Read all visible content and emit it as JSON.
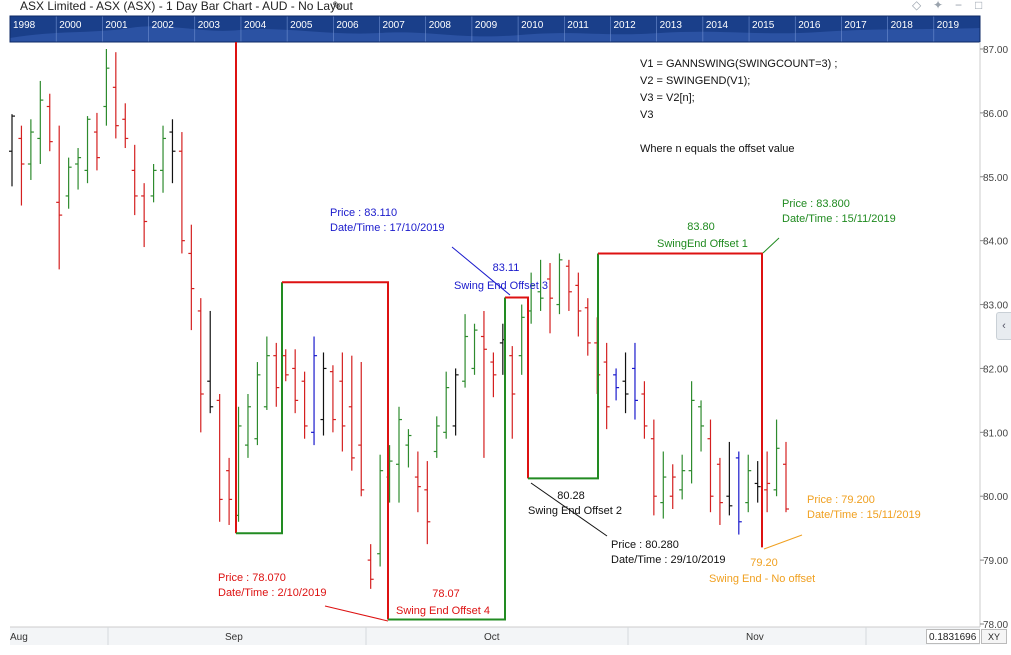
{
  "window": {
    "title": "ASX Limited - ASX (ASX) - 1 Day Bar Chart - AUD - No Layout",
    "edit_icon": "pencil-icon",
    "controls": [
      "diamond-icon",
      "pin-icon",
      "restore-icon",
      "close-icon"
    ]
  },
  "navigator": {
    "years": [
      "1998",
      "2000",
      "2001",
      "2002",
      "2003",
      "2004",
      "2005",
      "2006",
      "2007",
      "2008",
      "2009",
      "2010",
      "2011",
      "2012",
      "2013",
      "2014",
      "2015",
      "2016",
      "2017",
      "2018",
      "2019"
    ],
    "background_color": "#1a3f8a"
  },
  "chart_data": {
    "type": "bar",
    "subtype": "ohlc",
    "y_axis": {
      "ticks": [
        "78.00",
        "79.00",
        "80.00",
        "81.00",
        "82.00",
        "83.00",
        "84.00",
        "85.00",
        "86.00",
        "87.00"
      ],
      "min": 78.0,
      "max": 87.0,
      "side": "right"
    },
    "x_axis": {
      "labels": [
        "Aug",
        "Sep",
        "Oct",
        "Nov"
      ]
    },
    "colors": {
      "up": "#2e8b2e",
      "down": "#d42020",
      "neutral": "#111111",
      "highlight": "#1a1acc",
      "swing_line_red": "#dd1111",
      "swing_line_green": "#228b22"
    },
    "bars": [
      {
        "h": 85.98,
        "l": 84.85,
        "o": 85.4,
        "c": 85.95,
        "col": "k"
      },
      {
        "h": 85.8,
        "l": 84.55,
        "o": 85.6,
        "c": 85.2,
        "col": "r"
      },
      {
        "h": 85.9,
        "l": 84.95,
        "o": 85.2,
        "c": 85.7,
        "col": "g"
      },
      {
        "h": 86.5,
        "l": 85.2,
        "o": 85.6,
        "c": 86.2,
        "col": "g"
      },
      {
        "h": 86.3,
        "l": 85.4,
        "o": 86.1,
        "c": 85.55,
        "col": "r"
      },
      {
        "h": 85.8,
        "l": 83.55,
        "o": 84.6,
        "c": 84.4,
        "col": "r"
      },
      {
        "h": 85.3,
        "l": 84.5,
        "o": 84.7,
        "c": 85.15,
        "col": "g"
      },
      {
        "h": 85.45,
        "l": 84.8,
        "o": 85.2,
        "c": 85.3,
        "col": "g"
      },
      {
        "h": 85.95,
        "l": 84.9,
        "o": 85.1,
        "c": 85.9,
        "col": "g"
      },
      {
        "h": 86.0,
        "l": 85.1,
        "o": 85.7,
        "c": 85.3,
        "col": "r"
      },
      {
        "h": 87.0,
        "l": 85.8,
        "o": 86.1,
        "c": 86.7,
        "col": "g"
      },
      {
        "h": 86.95,
        "l": 85.6,
        "o": 86.4,
        "c": 85.8,
        "col": "r"
      },
      {
        "h": 86.15,
        "l": 85.45,
        "o": 85.9,
        "c": 85.6,
        "col": "r"
      },
      {
        "h": 85.5,
        "l": 84.4,
        "o": 85.1,
        "c": 84.7,
        "col": "r"
      },
      {
        "h": 84.9,
        "l": 83.9,
        "o": 84.7,
        "c": 84.3,
        "col": "r"
      },
      {
        "h": 85.2,
        "l": 84.6,
        "o": 84.7,
        "c": 85.1,
        "col": "g"
      },
      {
        "h": 85.8,
        "l": 84.75,
        "o": 85.1,
        "c": 85.6,
        "col": "g"
      },
      {
        "h": 85.9,
        "l": 84.9,
        "o": 85.7,
        "c": 85.4,
        "col": "k"
      },
      {
        "h": 85.7,
        "l": 83.8,
        "o": 85.4,
        "c": 84.0,
        "col": "r"
      },
      {
        "h": 84.25,
        "l": 82.6,
        "o": 83.8,
        "c": 83.25,
        "col": "r"
      },
      {
        "h": 83.1,
        "l": 81.0,
        "o": 82.9,
        "c": 81.6,
        "col": "r"
      },
      {
        "h": 82.9,
        "l": 81.3,
        "o": 81.8,
        "c": 81.4,
        "col": "k"
      },
      {
        "h": 81.6,
        "l": 79.6,
        "o": 81.5,
        "c": 79.95,
        "col": "r"
      },
      {
        "h": 80.6,
        "l": 79.55,
        "o": 80.4,
        "c": 79.95,
        "col": "r"
      },
      {
        "h": 81.4,
        "l": 79.6,
        "o": 79.7,
        "c": 81.1,
        "col": "g"
      },
      {
        "h": 81.6,
        "l": 80.6,
        "o": 80.8,
        "c": 81.4,
        "col": "g"
      },
      {
        "h": 82.1,
        "l": 80.8,
        "o": 80.9,
        "c": 81.9,
        "col": "g"
      },
      {
        "h": 82.5,
        "l": 81.35,
        "o": 81.4,
        "c": 82.2,
        "col": "g"
      },
      {
        "h": 82.4,
        "l": 81.4,
        "o": 82.2,
        "c": 81.7,
        "col": "r"
      },
      {
        "h": 82.3,
        "l": 81.8,
        "o": 82.2,
        "c": 81.9,
        "col": "r"
      },
      {
        "h": 82.3,
        "l": 81.3,
        "o": 82.0,
        "c": 81.5,
        "col": "r"
      },
      {
        "h": 81.95,
        "l": 80.9,
        "o": 81.8,
        "c": 81.1,
        "col": "r"
      },
      {
        "h": 82.5,
        "l": 80.8,
        "o": 81.0,
        "c": 82.2,
        "col": "b"
      },
      {
        "h": 82.25,
        "l": 80.95,
        "o": 81.2,
        "c": 82.0,
        "col": "k"
      },
      {
        "h": 82.05,
        "l": 81.0,
        "o": 81.95,
        "c": 81.2,
        "col": "r"
      },
      {
        "h": 82.25,
        "l": 80.7,
        "o": 81.8,
        "c": 81.1,
        "col": "r"
      },
      {
        "h": 82.2,
        "l": 80.4,
        "o": 81.4,
        "c": 80.6,
        "col": "r"
      },
      {
        "h": 82.1,
        "l": 80.0,
        "o": 80.8,
        "c": 80.1,
        "col": "r"
      },
      {
        "h": 79.25,
        "l": 78.55,
        "o": 79.0,
        "c": 78.7,
        "col": "r"
      },
      {
        "h": 80.65,
        "l": 78.9,
        "o": 79.1,
        "c": 80.4,
        "col": "g"
      },
      {
        "h": 80.8,
        "l": 79.9,
        "o": 80.3,
        "c": 80.55,
        "col": "g"
      },
      {
        "h": 81.4,
        "l": 79.9,
        "o": 80.5,
        "c": 81.2,
        "col": "g"
      },
      {
        "h": 81.05,
        "l": 80.45,
        "o": 80.8,
        "c": 80.95,
        "col": "g"
      },
      {
        "h": 80.7,
        "l": 79.75,
        "o": 80.3,
        "c": 80.15,
        "col": "r"
      },
      {
        "h": 80.55,
        "l": 79.25,
        "o": 80.1,
        "c": 79.6,
        "col": "r"
      },
      {
        "h": 81.25,
        "l": 80.6,
        "o": 80.7,
        "c": 81.1,
        "col": "g"
      },
      {
        "h": 81.95,
        "l": 80.9,
        "o": 81.0,
        "c": 81.7,
        "col": "g"
      },
      {
        "h": 82.0,
        "l": 80.95,
        "o": 81.1,
        "c": 81.9,
        "col": "k"
      },
      {
        "h": 82.85,
        "l": 81.7,
        "o": 81.8,
        "c": 82.5,
        "col": "g"
      },
      {
        "h": 82.7,
        "l": 81.9,
        "o": 82.0,
        "c": 82.6,
        "col": "g"
      },
      {
        "h": 82.9,
        "l": 80.6,
        "o": 82.5,
        "c": 82.3,
        "col": "r"
      },
      {
        "h": 82.25,
        "l": 81.55,
        "o": 82.1,
        "c": 81.9,
        "col": "r"
      },
      {
        "h": 82.7,
        "l": 81.9,
        "o": 82.4,
        "c": 82.45,
        "col": "k"
      },
      {
        "h": 82.35,
        "l": 80.9,
        "o": 82.2,
        "c": 81.6,
        "col": "r"
      },
      {
        "h": 83.0,
        "l": 81.9,
        "o": 82.2,
        "c": 82.8,
        "col": "g"
      },
      {
        "h": 83.5,
        "l": 82.7,
        "o": 82.9,
        "c": 83.3,
        "col": "g"
      },
      {
        "h": 83.7,
        "l": 82.9,
        "o": 83.2,
        "c": 83.1,
        "col": "g"
      },
      {
        "h": 83.65,
        "l": 82.55,
        "o": 83.4,
        "c": 83.1,
        "col": "r"
      },
      {
        "h": 83.8,
        "l": 82.85,
        "o": 83.0,
        "c": 83.7,
        "col": "g"
      },
      {
        "h": 83.7,
        "l": 82.9,
        "o": 83.6,
        "c": 83.2,
        "col": "r"
      },
      {
        "h": 83.5,
        "l": 82.5,
        "o": 83.3,
        "c": 82.9,
        "col": "r"
      },
      {
        "h": 83.1,
        "l": 82.2,
        "o": 82.95,
        "c": 82.4,
        "col": "r"
      },
      {
        "h": 82.8,
        "l": 81.6,
        "o": 82.4,
        "c": 81.9,
        "col": "r"
      },
      {
        "h": 82.4,
        "l": 81.05,
        "o": 82.1,
        "c": 81.4,
        "col": "r"
      },
      {
        "h": 82.0,
        "l": 81.5,
        "o": 81.9,
        "c": 81.7,
        "col": "b"
      },
      {
        "h": 82.25,
        "l": 81.3,
        "o": 81.8,
        "c": 81.6,
        "col": "k"
      },
      {
        "h": 82.4,
        "l": 81.2,
        "o": 82.0,
        "c": 81.5,
        "col": "b"
      },
      {
        "h": 81.8,
        "l": 80.9,
        "o": 81.6,
        "c": 81.1,
        "col": "r"
      },
      {
        "h": 81.2,
        "l": 79.7,
        "o": 80.9,
        "c": 80.0,
        "col": "r"
      },
      {
        "h": 80.7,
        "l": 79.65,
        "o": 79.9,
        "c": 80.3,
        "col": "g"
      },
      {
        "h": 80.5,
        "l": 79.8,
        "o": 80.0,
        "c": 80.3,
        "col": "r"
      },
      {
        "h": 80.65,
        "l": 79.95,
        "o": 80.1,
        "c": 80.4,
        "col": "g"
      },
      {
        "h": 81.8,
        "l": 80.2,
        "o": 80.4,
        "c": 81.5,
        "col": "g"
      },
      {
        "h": 81.5,
        "l": 80.7,
        "o": 81.4,
        "c": 81.1,
        "col": "g"
      },
      {
        "h": 81.2,
        "l": 79.75,
        "o": 80.9,
        "c": 80.0,
        "col": "r"
      },
      {
        "h": 80.6,
        "l": 79.55,
        "o": 80.5,
        "c": 79.9,
        "col": "r"
      },
      {
        "h": 80.85,
        "l": 79.7,
        "o": 80.0,
        "c": 79.85,
        "col": "k"
      },
      {
        "h": 80.7,
        "l": 79.4,
        "o": 80.6,
        "c": 79.6,
        "col": "b"
      },
      {
        "h": 80.65,
        "l": 79.75,
        "o": 79.9,
        "c": 80.4,
        "col": "g"
      },
      {
        "h": 80.55,
        "l": 79.9,
        "o": 80.2,
        "c": 80.15,
        "col": "k"
      },
      {
        "h": 80.7,
        "l": 79.75,
        "o": 80.1,
        "c": 80.2,
        "col": "r"
      },
      {
        "h": 81.2,
        "l": 80.0,
        "o": 80.1,
        "c": 80.75,
        "col": "g"
      },
      {
        "h": 80.85,
        "l": 79.75,
        "o": 80.5,
        "c": 79.8,
        "col": "r"
      }
    ],
    "swing_lines": [
      {
        "color": "red",
        "points": [
          [
            "b2.5",
            87.2
          ],
          [
            "b2.5",
            79.42
          ]
        ]
      },
      {
        "color": "green",
        "points": [
          [
            "b2.5",
            79.42
          ],
          [
            "b3.5",
            79.42
          ],
          [
            "b3.5",
            83.35
          ]
        ]
      },
      {
        "color": "red",
        "points": [
          [
            "b3.5",
            83.35
          ],
          [
            "b4.5",
            83.35
          ],
          [
            "b4.5",
            78.07
          ]
        ]
      },
      {
        "color": "green",
        "points": [
          [
            "b4.5",
            78.07
          ],
          [
            "b5.5",
            78.07
          ],
          [
            "b5.5",
            83.11
          ]
        ]
      },
      {
        "color": "red",
        "points": [
          [
            "b5.5",
            83.11
          ],
          [
            "b6",
            83.11
          ],
          [
            "b6",
            80.28
          ]
        ]
      },
      {
        "color": "green",
        "points": [
          [
            "b6",
            80.28
          ],
          [
            "b7",
            80.28
          ],
          [
            "b7",
            83.8
          ]
        ]
      },
      {
        "color": "red",
        "points": [
          [
            "b7",
            83.8
          ],
          [
            "b8",
            83.8
          ],
          [
            "b8",
            79.2
          ]
        ]
      }
    ],
    "annotations": {
      "formula": [
        "V1 = GANNSWING(SWINGCOUNT=3) ;",
        "V2 = SWINGEND(V1);",
        "V3 = V2[n];",
        "V3",
        "",
        "Where n equals the offset value"
      ],
      "blue_info": {
        "price": "Price : 83.110",
        "date": "Date/Time : 17/10/2019",
        "value": "83.11",
        "label": "Swing End Offset 3"
      },
      "green_info": {
        "price": "Price : 83.800",
        "date": "Date/Time : 15/11/2019",
        "value": "83.80",
        "label": "SwingEnd Offset 1"
      },
      "black_info": {
        "value": "80.28",
        "label": "Swing End Offset 2",
        "price": "Price : 80.280",
        "date": "Date/Time : 29/10/2019"
      },
      "red_info": {
        "price": "Price : 78.070",
        "date": "Date/Time : 2/10/2019",
        "value": "78.07",
        "label": "Swing End Offset 4"
      },
      "orange_info": {
        "price": "Price : 79.200",
        "date": "Date/Time : 15/11/2019",
        "value": "79.20",
        "label": "Swing End - No offset"
      }
    },
    "annotation_colors": {
      "blue": "#1a1acc",
      "green": "#1f8a1f",
      "black": "#111111",
      "red": "#dd1111",
      "orange": "#f0a020"
    },
    "grid": false
  },
  "footer": {
    "xy_value": "0.1831696",
    "xy_button": "XY"
  }
}
